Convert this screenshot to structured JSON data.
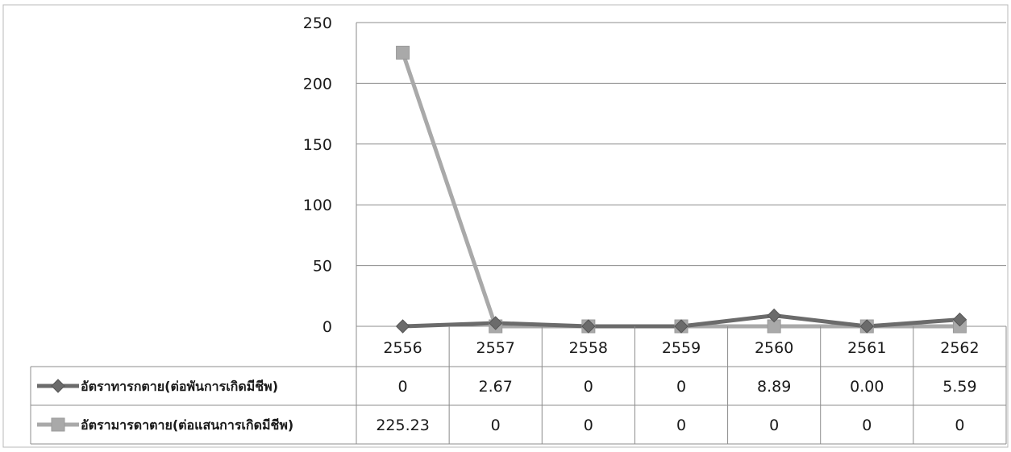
{
  "chart_data": {
    "type": "line",
    "categories": [
      "2556",
      "2557",
      "2558",
      "2559",
      "2560",
      "2561",
      "2562"
    ],
    "ylim": [
      0,
      250
    ],
    "yticks": [
      "0",
      "50",
      "100",
      "150",
      "200",
      "250"
    ],
    "grid": true,
    "legend": "data-table-left",
    "series": [
      {
        "name": "อัตราทารกตาย(ต่อพันการเกิดมีชีพ)",
        "values": [
          0,
          2.67,
          0,
          0,
          8.89,
          0.0,
          5.59
        ],
        "labels": [
          "0",
          "2.67",
          "0",
          "0",
          "8.89",
          "0.00",
          "5.59"
        ],
        "color": "#6b6b6b",
        "marker": "diamond"
      },
      {
        "name": "อัตรามารดาตาย(ต่อแสนการเกิดมีชีพ)",
        "values": [
          225.23,
          0,
          0,
          0,
          0,
          0,
          0
        ],
        "labels": [
          "225.23",
          "0",
          "0",
          "0",
          "0",
          "0",
          "0"
        ],
        "color": "#a9a9a9",
        "marker": "square"
      }
    ]
  }
}
